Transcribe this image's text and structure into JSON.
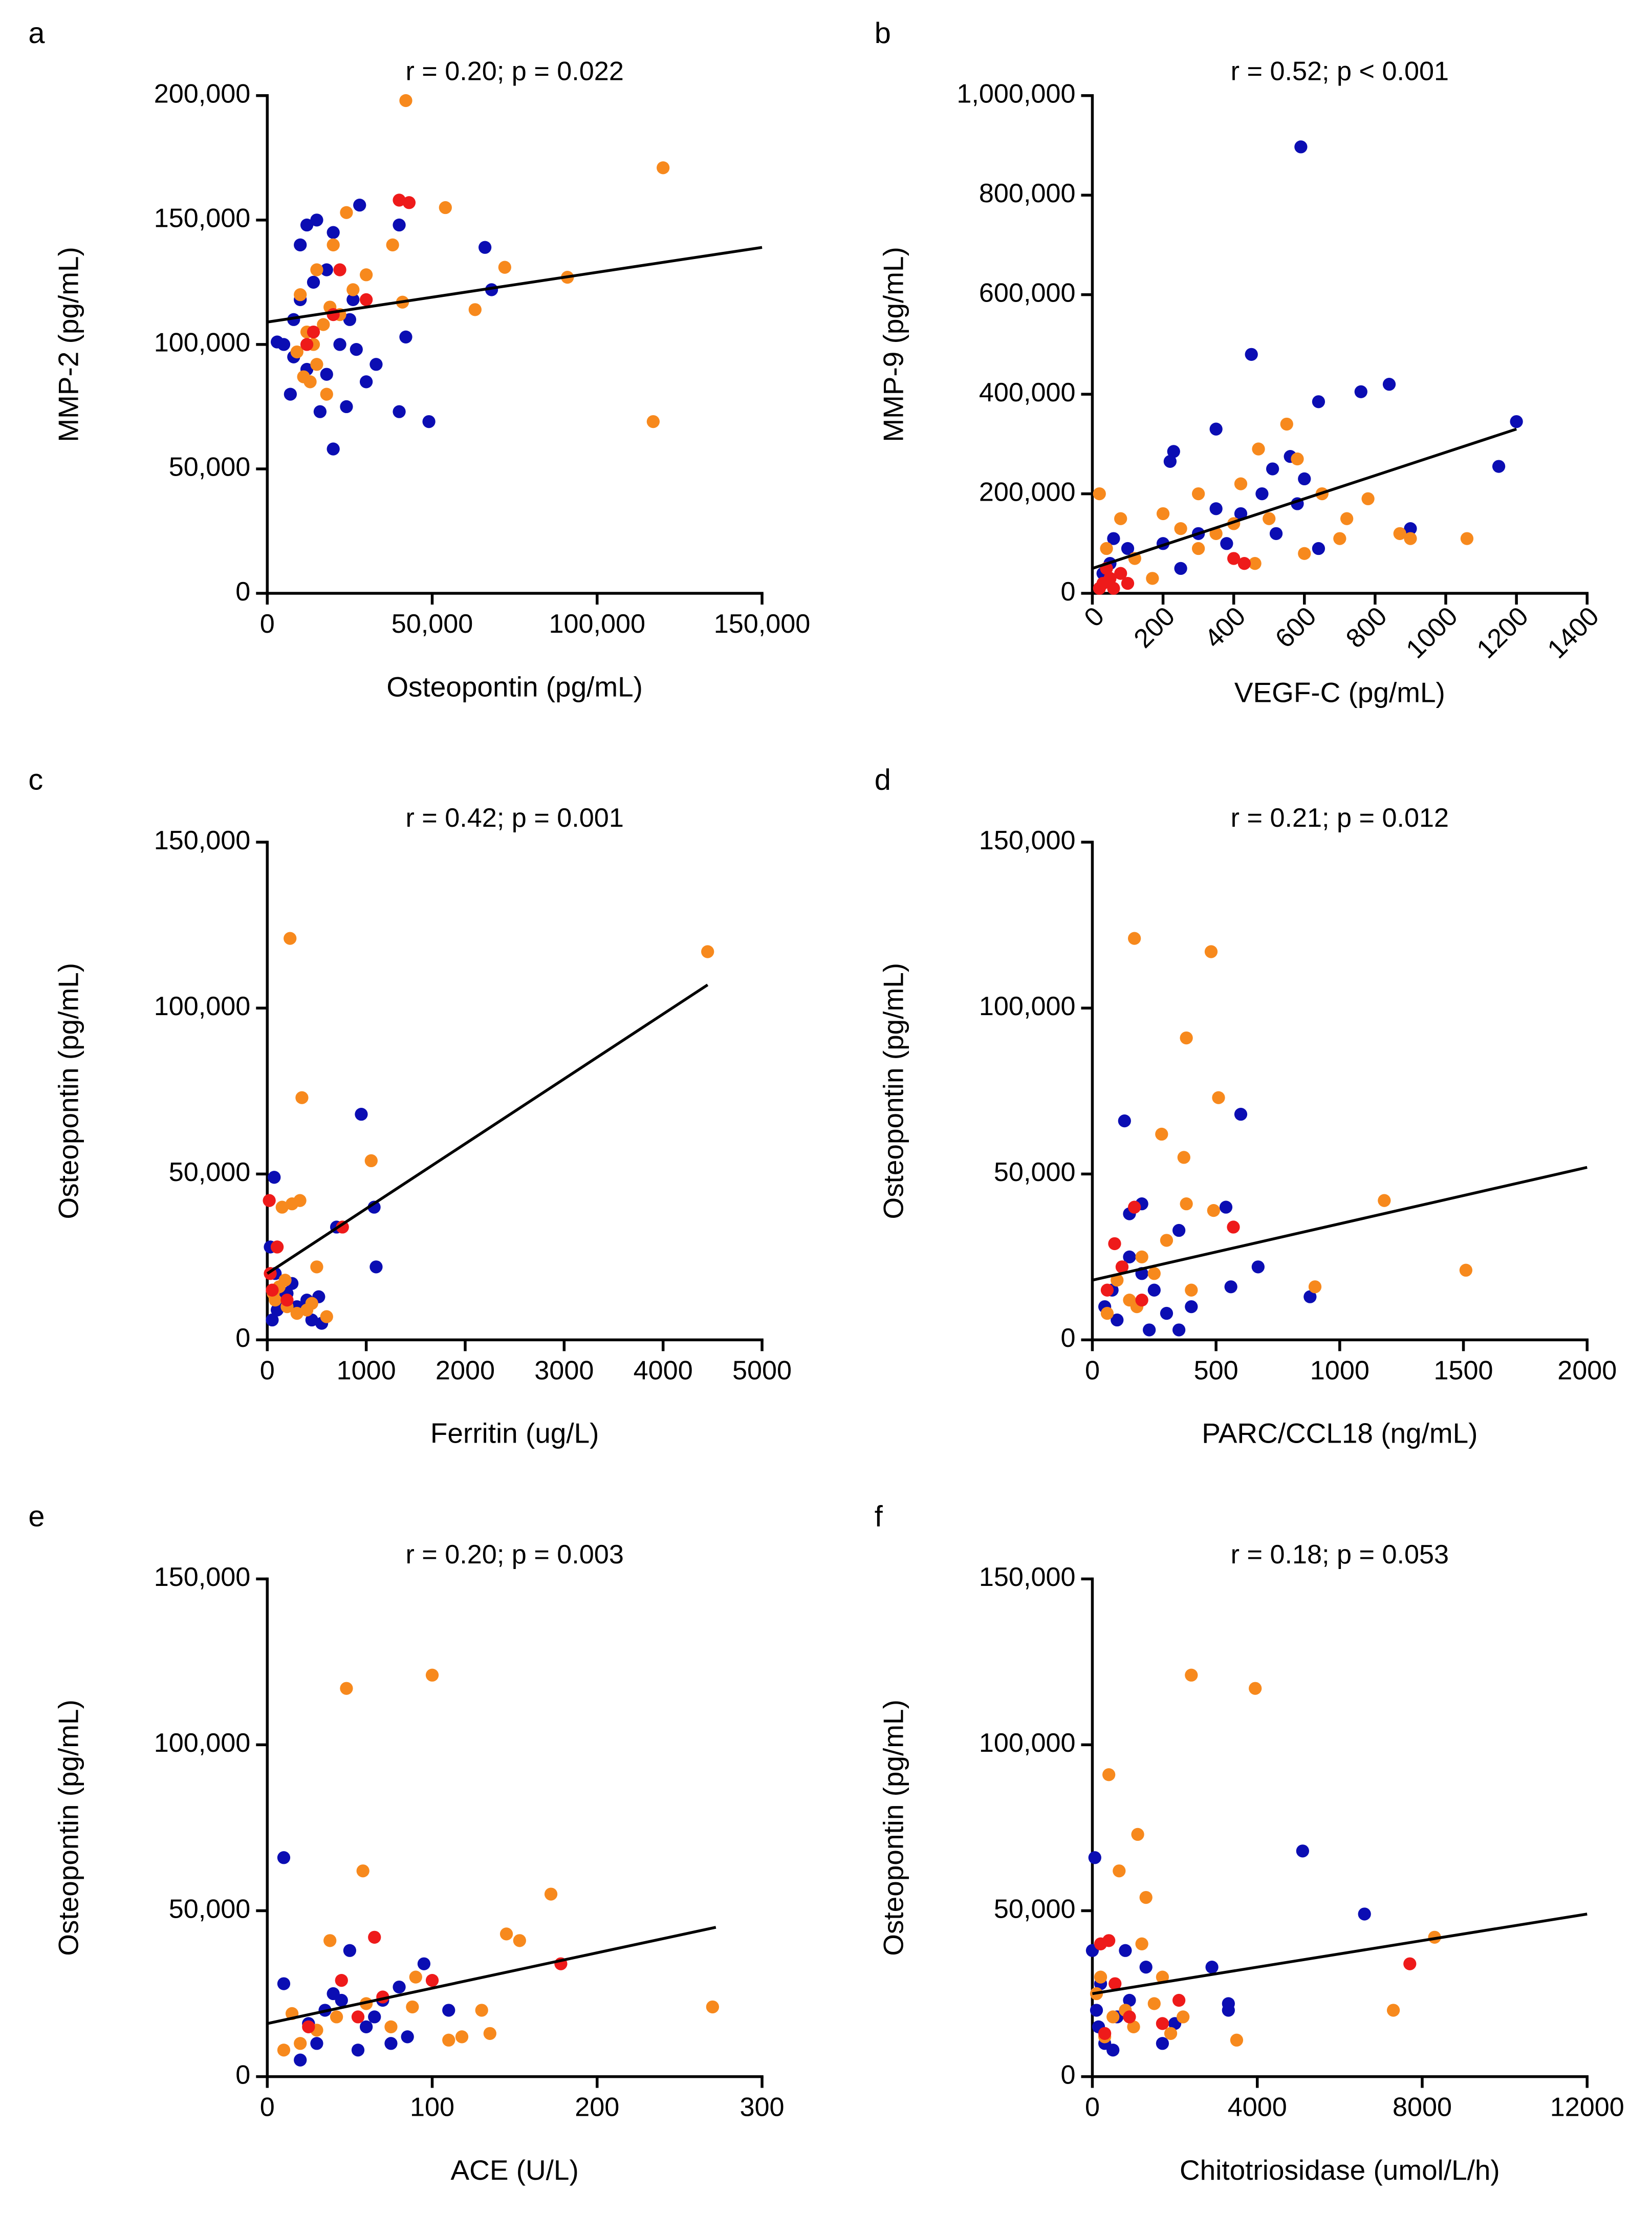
{
  "chart_data": [
    {
      "type": "scatter",
      "label": "a",
      "title": "r = 0.20; p = 0.022",
      "x_label": "Osteopontin (pg/mL)",
      "y_label": "MMP-2 (pg/mL)",
      "xlim": [
        0,
        150000
      ],
      "ylim": [
        0,
        200000
      ],
      "xticks": [
        0,
        {
          "value": 50000,
          "label": "50,000"
        },
        {
          "value": 100000,
          "label": "100,000"
        },
        {
          "value": 150000,
          "label": "150,000"
        }
      ],
      "yticks": [
        0,
        {
          "value": 50000,
          "label": "50,000"
        },
        {
          "value": 100000,
          "label": "100,000"
        },
        {
          "value": 150000,
          "label": "150,000"
        },
        {
          "value": 200000,
          "label": "200,000"
        }
      ],
      "series": [
        {
          "color": "#0b0db3",
          "x": [
            5000,
            8000,
            10000,
            12000,
            15000,
            10000,
            12000,
            7000,
            16000,
            20000,
            24000,
            22000,
            27000,
            30000,
            33000,
            28000,
            26000,
            18000,
            14000,
            40000,
            49000,
            42000,
            40000,
            66000,
            68000,
            20000,
            8000,
            3000,
            25000,
            18000
          ],
          "values": [
            100000,
            110000,
            140000,
            148000,
            150000,
            118000,
            90000,
            80000,
            73000,
            58000,
            75000,
            100000,
            98000,
            85000,
            92000,
            156000,
            118000,
            130000,
            125000,
            73000,
            69000,
            103000,
            148000,
            139000,
            122000,
            145000,
            95000,
            101000,
            110000,
            88000
          ]
        },
        {
          "color": "#f7891d",
          "x": [
            42000,
            120000,
            117000,
            54000,
            72000,
            91000,
            63000,
            41000,
            24000,
            20000,
            15000,
            10000,
            12000,
            14000,
            11000,
            15000,
            18000,
            30000,
            38000,
            22000,
            17000,
            26000,
            9000,
            13000,
            19000
          ],
          "values": [
            198000,
            171000,
            69000,
            155000,
            131000,
            127000,
            114000,
            117000,
            153000,
            140000,
            130000,
            120000,
            105000,
            100000,
            87000,
            92000,
            80000,
            128000,
            140000,
            112000,
            108000,
            122000,
            97000,
            85000,
            115000
          ]
        },
        {
          "color": "#ee1a1a",
          "x": [
            40000,
            43000,
            22000,
            20000,
            14000,
            30000,
            12000
          ],
          "values": [
            158000,
            157000,
            130000,
            112000,
            105000,
            118000,
            100000
          ]
        }
      ],
      "trend_line": {
        "x": [
          0,
          150000
        ],
        "values": [
          109000,
          139000
        ]
      }
    },
    {
      "type": "scatter",
      "label": "b",
      "title": "r = 0.52; p < 0.001",
      "x_label": "VEGF-C (pg/mL)",
      "y_label": "MMP-9 (pg/mL)",
      "xlim": [
        0,
        1400
      ],
      "ylim": [
        0,
        1000000
      ],
      "xtick_rotation": -45,
      "xticks": [
        0,
        200,
        400,
        600,
        800,
        1000,
        1200,
        1400
      ],
      "yticks": [
        0,
        {
          "value": 200000,
          "label": "200,000"
        },
        {
          "value": 400000,
          "label": "400,000"
        },
        {
          "value": 600000,
          "label": "600,000"
        },
        {
          "value": 800000,
          "label": "800,000"
        },
        {
          "value": 1000000,
          "label": "1,000,000"
        }
      ],
      "series": [
        {
          "color": "#0b0db3",
          "x": [
            590,
            450,
            1200,
            1150,
            840,
            760,
            640,
            560,
            510,
            350,
            220,
            230,
            900,
            580,
            600,
            480,
            420,
            380,
            300,
            200,
            100,
            60,
            50,
            30,
            640,
            520,
            250,
            350
          ],
          "values": [
            897000,
            480000,
            345000,
            255000,
            420000,
            405000,
            385000,
            275000,
            250000,
            330000,
            265000,
            285000,
            130000,
            180000,
            230000,
            200000,
            160000,
            100000,
            120000,
            100000,
            90000,
            110000,
            60000,
            40000,
            90000,
            120000,
            50000,
            170000
          ]
        },
        {
          "color": "#f7891d",
          "x": [
            20,
            80,
            200,
            300,
            420,
            470,
            550,
            580,
            650,
            720,
            780,
            870,
            900,
            1060,
            600,
            460,
            300,
            170,
            120,
            400,
            350,
            250,
            500,
            700,
            40
          ],
          "values": [
            200000,
            150000,
            160000,
            200000,
            220000,
            290000,
            340000,
            270000,
            200000,
            150000,
            190000,
            120000,
            110000,
            110000,
            80000,
            60000,
            90000,
            30000,
            70000,
            140000,
            120000,
            130000,
            150000,
            110000,
            90000
          ]
        },
        {
          "color": "#ee1a1a",
          "x": [
            30,
            50,
            80,
            60,
            100,
            40,
            400,
            430,
            20
          ],
          "values": [
            20000,
            30000,
            40000,
            10000,
            20000,
            50000,
            70000,
            60000,
            10000
          ]
        }
      ],
      "trend_line": {
        "x": [
          0,
          1200
        ],
        "values": [
          50000,
          330000
        ]
      }
    },
    {
      "type": "scatter",
      "label": "c",
      "title": "r = 0.42; p = 0.001",
      "x_label": "Ferritin (ug/L)",
      "y_label": "Osteopontin (pg/mL)",
      "xlim": [
        0,
        5000
      ],
      "ylim": [
        0,
        150000
      ],
      "xticks": [
        0,
        1000,
        2000,
        3000,
        4000,
        5000
      ],
      "yticks": [
        0,
        {
          "value": 50000,
          "label": "50,000"
        },
        {
          "value": 100000,
          "label": "100,000"
        },
        {
          "value": 150000,
          "label": "150,000"
        }
      ],
      "series": [
        {
          "color": "#0b0db3",
          "x": [
            950,
            70,
            1080,
            1100,
            700,
            520,
            550,
            450,
            50,
            100,
            150,
            80,
            30,
            200,
            300,
            400,
            250,
            120
          ],
          "values": [
            68000,
            49000,
            40000,
            22000,
            34000,
            13000,
            5000,
            6000,
            6000,
            9000,
            12000,
            20000,
            28000,
            14000,
            10000,
            12000,
            17000,
            15000
          ]
        },
        {
          "color": "#f7891d",
          "x": [
            230,
            4450,
            350,
            1050,
            330,
            150,
            250,
            100,
            500,
            60,
            200,
            300,
            400,
            180,
            450,
            600,
            120,
            80
          ],
          "values": [
            121000,
            117000,
            73000,
            54000,
            42000,
            40000,
            41000,
            28000,
            22000,
            14000,
            10000,
            8000,
            9000,
            18000,
            11000,
            7000,
            16000,
            12000
          ]
        },
        {
          "color": "#ee1a1a",
          "x": [
            20,
            760,
            100,
            30,
            50,
            200
          ],
          "values": [
            42000,
            34000,
            28000,
            20000,
            15000,
            12000
          ]
        }
      ],
      "trend_line": {
        "x": [
          0,
          4450
        ],
        "values": [
          20000,
          107000
        ]
      }
    },
    {
      "type": "scatter",
      "label": "d",
      "title": "r = 0.21; p = 0.012",
      "x_label": "PARC/CCL18 (ng/mL)",
      "y_label": "Osteopontin (pg/mL)",
      "xlim": [
        0,
        2000
      ],
      "ylim": [
        0,
        150000
      ],
      "xticks": [
        0,
        500,
        1000,
        1500,
        2000
      ],
      "yticks": [
        0,
        {
          "value": 50000,
          "label": "50,000"
        },
        {
          "value": 100000,
          "label": "100,000"
        },
        {
          "value": 150000,
          "label": "150,000"
        }
      ],
      "series": [
        {
          "color": "#0b0db3",
          "x": [
            600,
            130,
            350,
            200,
            150,
            540,
            670,
            880,
            560,
            100,
            50,
            200,
            250,
            300,
            400,
            350,
            150,
            80,
            230
          ],
          "values": [
            68000,
            66000,
            33000,
            41000,
            38000,
            40000,
            22000,
            13000,
            16000,
            6000,
            10000,
            20000,
            15000,
            8000,
            10000,
            3000,
            25000,
            15000,
            3000
          ]
        },
        {
          "color": "#f7891d",
          "x": [
            170,
            480,
            380,
            510,
            280,
            370,
            490,
            1180,
            1510,
            900,
            380,
            300,
            200,
            100,
            150,
            250,
            120,
            400,
            60,
            180
          ],
          "values": [
            121000,
            117000,
            91000,
            73000,
            62000,
            55000,
            39000,
            42000,
            21000,
            16000,
            41000,
            30000,
            25000,
            18000,
            12000,
            20000,
            22000,
            15000,
            8000,
            10000
          ]
        },
        {
          "color": "#ee1a1a",
          "x": [
            170,
            570,
            90,
            120,
            60,
            200
          ],
          "values": [
            40000,
            34000,
            29000,
            22000,
            15000,
            12000
          ]
        }
      ],
      "trend_line": {
        "x": [
          0,
          2000
        ],
        "values": [
          18000,
          52000
        ]
      }
    },
    {
      "type": "scatter",
      "label": "e",
      "title": "r = 0.20; p = 0.003",
      "x_label": "ACE (U/L)",
      "y_label": "Osteopontin (pg/mL)",
      "xlim": [
        0,
        300
      ],
      "ylim": [
        0,
        150000
      ],
      "xticks": [
        0,
        100,
        200,
        300
      ],
      "yticks": [
        0,
        {
          "value": 50000,
          "label": "50,000"
        },
        {
          "value": 100000,
          "label": "100,000"
        },
        {
          "value": 150000,
          "label": "150,000"
        }
      ],
      "series": [
        {
          "color": "#0b0db3",
          "x": [
            10,
            95,
            70,
            80,
            45,
            50,
            40,
            60,
            85,
            110,
            10,
            30,
            20,
            55,
            65,
            25,
            75,
            35
          ],
          "values": [
            66000,
            34000,
            23000,
            27000,
            23000,
            38000,
            25000,
            15000,
            12000,
            20000,
            28000,
            10000,
            5000,
            8000,
            18000,
            16000,
            10000,
            20000
          ]
        },
        {
          "color": "#f7891d",
          "x": [
            48,
            100,
            58,
            172,
            38,
            145,
            153,
            270,
            135,
            110,
            118,
            130,
            90,
            15,
            20,
            30,
            42,
            60,
            10,
            75,
            88
          ],
          "values": [
            117000,
            121000,
            62000,
            55000,
            41000,
            43000,
            41000,
            21000,
            13000,
            11000,
            12000,
            20000,
            30000,
            19000,
            10000,
            14000,
            18000,
            22000,
            8000,
            15000,
            21000
          ]
        },
        {
          "color": "#ee1a1a",
          "x": [
            65,
            45,
            100,
            178,
            70,
            25,
            55
          ],
          "values": [
            42000,
            29000,
            29000,
            34000,
            24000,
            15000,
            18000
          ]
        }
      ],
      "trend_line": {
        "x": [
          0,
          272
        ],
        "values": [
          16000,
          45000
        ]
      }
    },
    {
      "type": "scatter",
      "label": "f",
      "title": "r = 0.18; p = 0.053",
      "x_label": "Chitotriosidase (umol/L/h)",
      "y_label": "Osteopontin (pg/mL)",
      "xlim": [
        0,
        12000
      ],
      "ylim": [
        0,
        150000
      ],
      "xticks": [
        0,
        4000,
        8000,
        12000
      ],
      "yticks": [
        0,
        {
          "value": 50000,
          "label": "50,000"
        },
        {
          "value": 100000,
          "label": "100,000"
        },
        {
          "value": 150000,
          "label": "150,000"
        }
      ],
      "series": [
        {
          "color": "#0b0db3",
          "x": [
            5100,
            6600,
            60,
            0,
            3300,
            2900,
            1300,
            800,
            200,
            100,
            300,
            600,
            500,
            1700,
            2000,
            3300,
            150,
            900
          ],
          "values": [
            68000,
            49000,
            66000,
            38000,
            22000,
            33000,
            33000,
            38000,
            28000,
            20000,
            10000,
            18000,
            8000,
            10000,
            16000,
            20000,
            15000,
            23000
          ]
        },
        {
          "color": "#f7891d",
          "x": [
            2400,
            3950,
            400,
            1100,
            650,
            1300,
            8300,
            7300,
            3500,
            1200,
            1700,
            1900,
            200,
            500,
            800,
            1000,
            300,
            1500,
            2200,
            100
          ],
          "values": [
            121000,
            117000,
            91000,
            73000,
            62000,
            54000,
            42000,
            20000,
            11000,
            40000,
            30000,
            13000,
            30000,
            18000,
            20000,
            15000,
            12000,
            22000,
            18000,
            25000
          ]
        },
        {
          "color": "#ee1a1a",
          "x": [
            400,
            200,
            7700,
            2100,
            1700,
            550,
            900,
            300
          ],
          "values": [
            41000,
            40000,
            34000,
            23000,
            16000,
            28000,
            18000,
            13000
          ]
        }
      ],
      "trend_line": {
        "x": [
          0,
          12000
        ],
        "values": [
          25000,
          49000
        ]
      }
    }
  ]
}
